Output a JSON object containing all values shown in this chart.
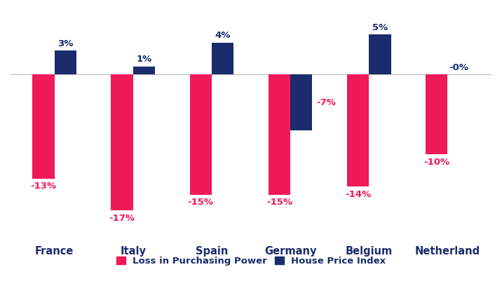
{
  "categories": [
    "France",
    "Italy",
    "Spain",
    "Germany",
    "Belgium",
    "Netherland"
  ],
  "loss_in_purchasing_power": [
    -13,
    -17,
    -15,
    -15,
    -14,
    -10
  ],
  "house_price_index": [
    3,
    1,
    4,
    -7,
    5,
    0
  ],
  "hpi_labels": [
    "3%",
    "1%",
    "4%",
    "-7%",
    "5%",
    "-0%"
  ],
  "lpp_labels": [
    "-13%",
    "-17%",
    "-15%",
    "-15%",
    "-14%",
    "-10%"
  ],
  "bar_color_lpp": "#F0195A",
  "bar_color_hpi": "#1A2C6B",
  "label_color_lpp": "#F0195A",
  "label_color_hpi": "#1A2C6B",
  "background_color": "#FFFFFF",
  "bar_width": 0.28,
  "ylim": [
    -20,
    8
  ],
  "legend_labels": [
    "Loss in Purchasing Power",
    "House Price Index"
  ],
  "figsize": [
    7.16,
    4.28
  ],
  "dpi": 100
}
